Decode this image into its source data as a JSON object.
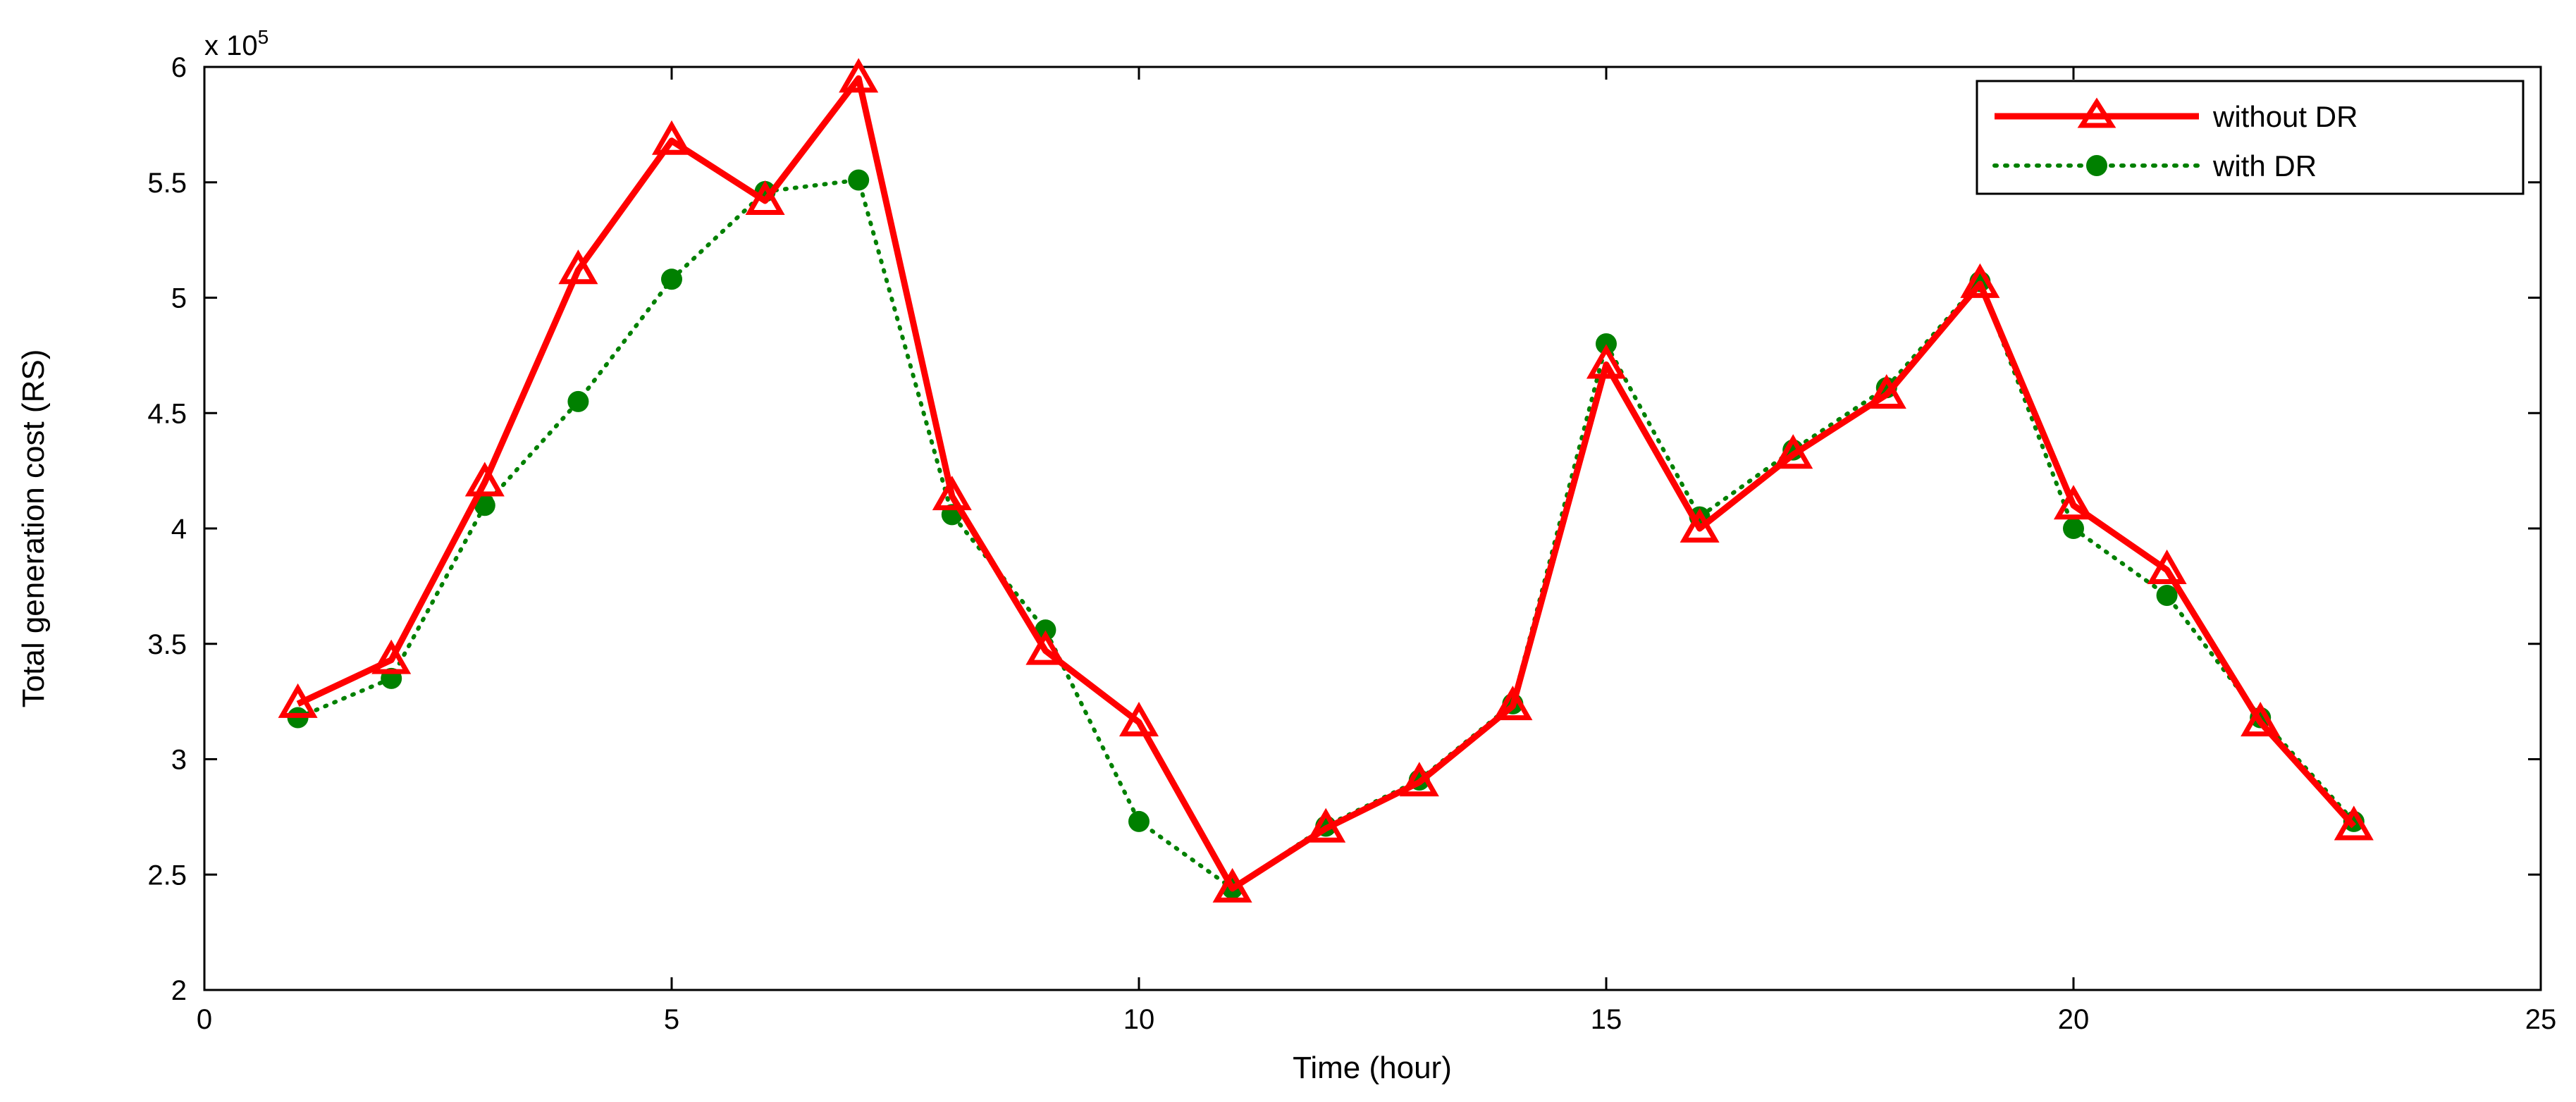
{
  "chart_data": {
    "type": "line",
    "xlabel": "Time (hour)",
    "ylabel": "Total generation cost (RS)",
    "y_multiplier_label": "x 10",
    "y_multiplier_exponent": "5",
    "xlim": [
      0,
      25
    ],
    "ylim": [
      2,
      6
    ],
    "x_ticks": [
      0,
      5,
      10,
      15,
      20,
      25
    ],
    "x_tick_labels": [
      "0",
      "5",
      "10",
      "15",
      "20",
      "25"
    ],
    "y_ticks": [
      2,
      2.5,
      3,
      3.5,
      4,
      4.5,
      5,
      5.5,
      6
    ],
    "y_tick_labels": [
      "2",
      "2.5",
      "3",
      "3.5",
      "4",
      "4.5",
      "5",
      "5.5",
      "6"
    ],
    "grid": false,
    "legend_position": "top-right",
    "x": [
      1,
      2,
      3,
      4,
      5,
      6,
      7,
      8,
      9,
      10,
      11,
      12,
      13,
      14,
      15,
      16,
      17,
      18,
      19,
      20,
      21,
      22,
      23
    ],
    "series": [
      {
        "name": "without DR",
        "color": "#ff0000",
        "line_style": "solid",
        "marker": "triangle",
        "values": [
          3.24,
          3.43,
          4.2,
          5.12,
          5.68,
          5.42,
          5.95,
          4.14,
          3.47,
          3.16,
          2.44,
          2.7,
          2.9,
          3.23,
          4.71,
          4.0,
          4.32,
          4.58,
          5.06,
          4.1,
          3.82,
          3.16,
          2.71
        ]
      },
      {
        "name": "with DR",
        "color": "#008000",
        "line_style": "dotted",
        "marker": "circle",
        "values": [
          3.18,
          3.35,
          4.1,
          4.55,
          5.08,
          5.46,
          5.51,
          4.06,
          3.56,
          2.73,
          2.44,
          2.71,
          2.91,
          3.24,
          4.8,
          4.05,
          4.34,
          4.61,
          5.07,
          4.0,
          3.71,
          3.18,
          2.73
        ]
      }
    ]
  }
}
